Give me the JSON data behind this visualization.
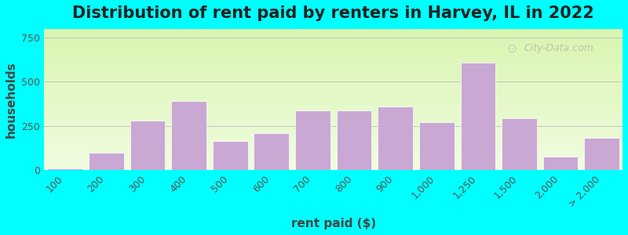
{
  "title": "Distribution of rent paid by renters in Harvey, IL in 2022",
  "xlabel": "rent paid ($)",
  "ylabel": "households",
  "categories": [
    "100",
    "200",
    "300",
    "400",
    "500",
    "600",
    "700",
    "800",
    "900",
    "1,000",
    "1,250",
    "1,500",
    "2,000",
    "> 2,000"
  ],
  "values": [
    10,
    100,
    280,
    390,
    165,
    210,
    340,
    340,
    360,
    270,
    610,
    295,
    75,
    185
  ],
  "bar_color": "#c9a8d4",
  "bar_edge_color": "#ffffff",
  "bg_color": "#edfadc",
  "outer_bg": "#00ffff",
  "ylim": [
    0,
    800
  ],
  "yticks": [
    0,
    250,
    500,
    750
  ],
  "title_fontsize": 15,
  "axis_label_fontsize": 11,
  "tick_fontsize": 9,
  "watermark": "City-Data.com"
}
